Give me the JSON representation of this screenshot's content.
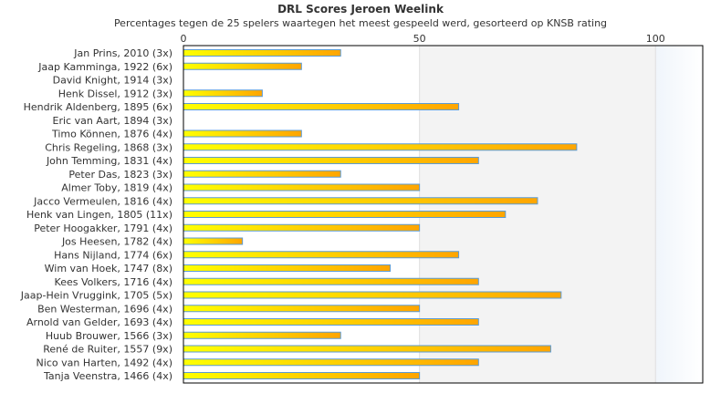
{
  "chart_data": {
    "type": "bar",
    "orientation": "horizontal",
    "title": "DRL Scores Jeroen Weelink",
    "subtitle": "Percentages tegen de 25 spelers waartegen het meest gespeeld werd, gesorteerd op KNSB rating",
    "xlim": [
      0,
      110
    ],
    "xticks": [
      "0",
      "50",
      "100"
    ],
    "xtick_values": [
      0,
      50,
      100
    ],
    "colors": {
      "bar_start": "#ffff00",
      "bar_end": "#ffa500",
      "bar_border": "#5b9bd5",
      "band_mid": "#f3f3f3"
    },
    "categories": [
      "Jan Prins, 2010 (3x)",
      "Jaap Kamminga, 1922 (6x)",
      "David Knight, 1914 (3x)",
      "Henk Dissel, 1912 (3x)",
      "Hendrik Aldenberg, 1895 (6x)",
      "Eric van Aart, 1894 (3x)",
      "Timo Können, 1876 (4x)",
      "Chris Regeling, 1868 (3x)",
      "John Temming, 1831 (4x)",
      "Peter Das, 1823 (3x)",
      "Almer Toby, 1819 (4x)",
      "Jacco Vermeulen, 1816 (4x)",
      "Henk van Lingen, 1805 (11x)",
      "Peter Hoogakker, 1791 (4x)",
      "Jos Heesen, 1782 (4x)",
      "Hans Nijland, 1774 (6x)",
      "Wim van Hoek, 1747 (8x)",
      "Kees Volkers, 1716 (4x)",
      "Jaap-Hein Vruggink, 1705 (5x)",
      "Ben Westerman, 1696 (4x)",
      "Arnold van Gelder, 1693 (4x)",
      "Huub Brouwer, 1566 (3x)",
      "René de Ruiter, 1557 (9x)",
      "Nico van Harten, 1492 (4x)",
      "Tanja Veenstra, 1466 (4x)"
    ],
    "values": [
      33.3,
      25,
      0,
      16.7,
      58.3,
      0,
      25,
      83.3,
      62.5,
      33.3,
      50,
      75,
      68.2,
      50,
      12.5,
      58.3,
      43.8,
      62.5,
      80,
      50,
      62.5,
      33.3,
      77.8,
      62.5,
      50
    ]
  }
}
